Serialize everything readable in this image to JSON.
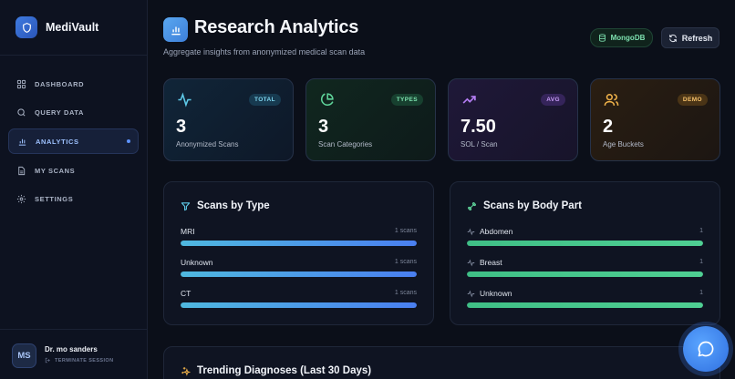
{
  "brand": {
    "name": "MediVault"
  },
  "sidebar": {
    "items": [
      {
        "label": "DASHBOARD",
        "icon": "grid-icon"
      },
      {
        "label": "QUERY DATA",
        "icon": "search-icon"
      },
      {
        "label": "ANALYTICS",
        "icon": "bar-chart-icon",
        "active": true
      },
      {
        "label": "MY SCANS",
        "icon": "document-icon"
      },
      {
        "label": "SETTINGS",
        "icon": "gear-icon"
      }
    ]
  },
  "user": {
    "initials": "MS",
    "name": "Dr. mo sanders",
    "logout_label": "TERMINATE SESSION"
  },
  "header": {
    "title": "Research Analytics",
    "subtitle": "Aggregate insights from anonymized medical scan data",
    "db_label": "MongoDB",
    "refresh_label": "Refresh"
  },
  "stats": [
    {
      "value": "3",
      "label": "Anonymized Scans",
      "badge": "TOTAL",
      "icon": "pulse-icon",
      "accent": "#5ec9e8"
    },
    {
      "value": "3",
      "label": "Scan Categories",
      "badge": "TYPES",
      "icon": "pie-chart-icon",
      "accent": "#5fd49a"
    },
    {
      "value": "7.50",
      "label": "SOL / Scan",
      "badge": "AVG",
      "icon": "trending-up-icon",
      "accent": "#b37cf2"
    },
    {
      "value": "2",
      "label": "Age Buckets",
      "badge": "DEMO",
      "icon": "users-icon",
      "accent": "#f0b24a"
    }
  ],
  "scans_by_type": {
    "title": "Scans by Type",
    "rows": [
      {
        "label": "MRI",
        "count": "1 scans",
        "fraction": 1.0
      },
      {
        "label": "Unknown",
        "count": "1 scans",
        "fraction": 1.0
      },
      {
        "label": "CT",
        "count": "1 scans",
        "fraction": 1.0
      }
    ]
  },
  "scans_by_body_part": {
    "title": "Scans by Body Part",
    "rows": [
      {
        "label": "Abdomen",
        "count": "1",
        "fraction": 1.0
      },
      {
        "label": "Breast",
        "count": "1",
        "fraction": 1.0
      },
      {
        "label": "Unknown",
        "count": "1",
        "fraction": 1.0
      }
    ]
  },
  "trending": {
    "title": "Trending Diagnoses (Last 30 Days)"
  }
}
